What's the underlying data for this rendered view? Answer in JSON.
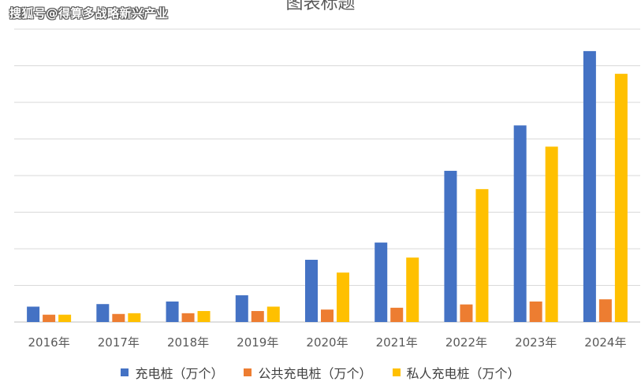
{
  "watermark": "搜狐号@得算多战略新兴产业",
  "chart_data": {
    "type": "bar",
    "title": "图表标题",
    "categories": [
      "2016年",
      "2017年",
      "2018年",
      "2019年",
      "2020年",
      "2021年",
      "2022年",
      "2023年",
      "2024年"
    ],
    "series": [
      {
        "name": "充电桩（万个）",
        "color": "#4472C4",
        "values": [
          0.42,
          0.49,
          0.56,
          0.73,
          1.7,
          2.17,
          4.13,
          5.37,
          7.4
        ]
      },
      {
        "name": "公共充电桩（万个）",
        "color": "#ED7D31",
        "values": [
          0.2,
          0.22,
          0.24,
          0.3,
          0.34,
          0.39,
          0.48,
          0.56,
          0.62
        ]
      },
      {
        "name": "私人充电桩（万个）",
        "color": "#FFC000",
        "values": [
          0.2,
          0.24,
          0.3,
          0.42,
          1.35,
          1.76,
          3.63,
          4.79,
          6.78
        ]
      }
    ],
    "ylim": [
      0,
      8
    ],
    "grid": true,
    "legend_position": "bottom",
    "xlabel": "",
    "ylabel": ""
  }
}
